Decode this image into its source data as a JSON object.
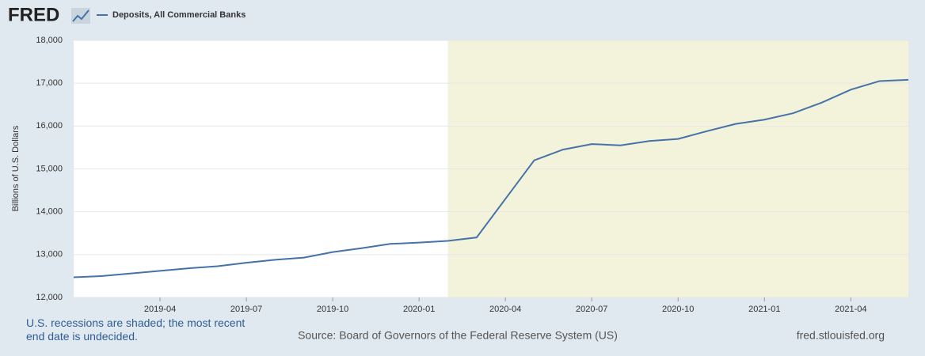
{
  "chart_data": {
    "type": "line",
    "brand": "FRED",
    "title": "Deposits, All Commercial Banks",
    "ylabel": "Billions of U.S. Dollars",
    "x": [
      "2019-01",
      "2019-02",
      "2019-03",
      "2019-04",
      "2019-05",
      "2019-06",
      "2019-07",
      "2019-08",
      "2019-09",
      "2019-10",
      "2019-11",
      "2019-12",
      "2020-01",
      "2020-02",
      "2020-03",
      "2020-04",
      "2020-05",
      "2020-06",
      "2020-07",
      "2020-08",
      "2020-09",
      "2020-10",
      "2020-11",
      "2020-12",
      "2021-01",
      "2021-02",
      "2021-03",
      "2021-04",
      "2021-05",
      "2021-06"
    ],
    "series": [
      {
        "name": "Deposits, All Commercial Banks",
        "color": "#4572a7",
        "values": [
          12470,
          12500,
          12560,
          12620,
          12680,
          12730,
          12810,
          12880,
          12930,
          13060,
          13150,
          13250,
          13280,
          13320,
          13400,
          14300,
          15200,
          15450,
          15580,
          15550,
          15650,
          15700,
          15880,
          16050,
          16150,
          16300,
          16550,
          16850,
          17050,
          17080
        ]
      }
    ],
    "xlim": [
      "2019-01",
      "2021-06"
    ],
    "xticks": [
      "2019-04",
      "2019-07",
      "2019-10",
      "2020-01",
      "2020-04",
      "2020-07",
      "2020-10",
      "2021-01",
      "2021-04"
    ],
    "ylim": [
      12000,
      18000
    ],
    "yticks": [
      {
        "value": 12000,
        "label": "12,000"
      },
      {
        "value": 13000,
        "label": "13,000"
      },
      {
        "value": 14000,
        "label": "14,000"
      },
      {
        "value": 15000,
        "label": "15,000"
      },
      {
        "value": 16000,
        "label": "16,000"
      },
      {
        "value": 17000,
        "label": "17,000"
      },
      {
        "value": 18000,
        "label": "18,000"
      }
    ],
    "grid": true,
    "recession_start": "2020-02",
    "recession_color": "#f3f3dc",
    "note": "U.S. recessions are shaded; the most recent end date is undecided.",
    "source": "Source: Board of Governors of the Federal Reserve System (US)",
    "site": "fred.stlouisfed.org"
  }
}
